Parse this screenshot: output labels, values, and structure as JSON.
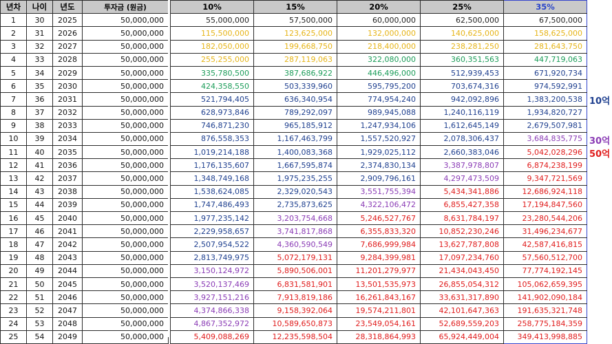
{
  "colors": {
    "default": "#222222",
    "yellow": "#e6b417",
    "green": "#1a9c58",
    "blue": "#1e3f8f",
    "purple": "#8a3bb5",
    "red": "#e01b1b"
  },
  "left_table": {
    "headers": [
      "년차",
      "나이",
      "년도",
      "투자금 (원금)"
    ],
    "rows": [
      [
        "1",
        "30",
        "2025",
        "50,000,000"
      ],
      [
        "2",
        "31",
        "2026",
        "50,000,000"
      ],
      [
        "3",
        "32",
        "2027",
        "50,000,000"
      ],
      [
        "4",
        "33",
        "2028",
        "50,000,000"
      ],
      [
        "5",
        "34",
        "2029",
        "50,000,000"
      ],
      [
        "6",
        "35",
        "2030",
        "50,000,000"
      ],
      [
        "7",
        "36",
        "2031",
        "50,000,000"
      ],
      [
        "8",
        "37",
        "2032",
        "50,000,000"
      ],
      [
        "9",
        "38",
        "2033",
        "50,000,000"
      ],
      [
        "10",
        "39",
        "2034",
        "50,000,000"
      ],
      [
        "11",
        "40",
        "2035",
        "50,000,000"
      ],
      [
        "12",
        "41",
        "2036",
        "50,000,000"
      ],
      [
        "13",
        "42",
        "2037",
        "50,000,000"
      ],
      [
        "14",
        "43",
        "2038",
        "50,000,000"
      ],
      [
        "15",
        "44",
        "2039",
        "50,000,000"
      ],
      [
        "16",
        "45",
        "2040",
        "50,000,000"
      ],
      [
        "17",
        "46",
        "2041",
        "50,000,000"
      ],
      [
        "18",
        "47",
        "2042",
        "50,000,000"
      ],
      [
        "19",
        "48",
        "2043",
        "50,000,000"
      ],
      [
        "20",
        "49",
        "2044",
        "50,000,000"
      ],
      [
        "21",
        "50",
        "2045",
        "50,000,000"
      ],
      [
        "22",
        "51",
        "2046",
        "50,000,000"
      ],
      [
        "23",
        "52",
        "2047",
        "50,000,000"
      ],
      [
        "24",
        "53",
        "2048",
        "50,000,000"
      ],
      [
        "25",
        "54",
        "2049",
        "50,000,000"
      ]
    ]
  },
  "right_table": {
    "headers": [
      "10%",
      "15%",
      "20%",
      "25%",
      "35%"
    ],
    "highlighted_column": 4,
    "rows": [
      [
        [
          "55,000,000",
          "default"
        ],
        [
          "57,500,000",
          "default"
        ],
        [
          "60,000,000",
          "default"
        ],
        [
          "62,500,000",
          "default"
        ],
        [
          "67,500,000",
          "default"
        ]
      ],
      [
        [
          "115,500,000",
          "yellow"
        ],
        [
          "123,625,000",
          "yellow"
        ],
        [
          "132,000,000",
          "yellow"
        ],
        [
          "140,625,000",
          "yellow"
        ],
        [
          "158,625,000",
          "yellow"
        ]
      ],
      [
        [
          "182,050,000",
          "yellow"
        ],
        [
          "199,668,750",
          "yellow"
        ],
        [
          "218,400,000",
          "yellow"
        ],
        [
          "238,281,250",
          "yellow"
        ],
        [
          "281,643,750",
          "yellow"
        ]
      ],
      [
        [
          "255,255,000",
          "yellow"
        ],
        [
          "287,119,063",
          "yellow"
        ],
        [
          "322,080,000",
          "green"
        ],
        [
          "360,351,563",
          "green"
        ],
        [
          "447,719,063",
          "green"
        ]
      ],
      [
        [
          "335,780,500",
          "green"
        ],
        [
          "387,686,922",
          "green"
        ],
        [
          "446,496,000",
          "green"
        ],
        [
          "512,939,453",
          "blue"
        ],
        [
          "671,920,734",
          "blue"
        ]
      ],
      [
        [
          "424,358,550",
          "green"
        ],
        [
          "503,339,960",
          "blue"
        ],
        [
          "595,795,200",
          "blue"
        ],
        [
          "703,674,316",
          "blue"
        ],
        [
          "974,592,991",
          "blue"
        ]
      ],
      [
        [
          "521,794,405",
          "blue"
        ],
        [
          "636,340,954",
          "blue"
        ],
        [
          "774,954,240",
          "blue"
        ],
        [
          "942,092,896",
          "blue"
        ],
        [
          "1,383,200,538",
          "blue"
        ]
      ],
      [
        [
          "628,973,846",
          "blue"
        ],
        [
          "789,292,097",
          "blue"
        ],
        [
          "989,945,088",
          "blue"
        ],
        [
          "1,240,116,119",
          "blue"
        ],
        [
          "1,934,820,727",
          "blue"
        ]
      ],
      [
        [
          "746,871,230",
          "blue"
        ],
        [
          "965,185,912",
          "blue"
        ],
        [
          "1,247,934,106",
          "blue"
        ],
        [
          "1,612,645,149",
          "blue"
        ],
        [
          "2,679,507,981",
          "blue"
        ]
      ],
      [
        [
          "876,558,353",
          "blue"
        ],
        [
          "1,167,463,799",
          "blue"
        ],
        [
          "1,557,520,927",
          "blue"
        ],
        [
          "2,078,306,437",
          "blue"
        ],
        [
          "3,684,835,775",
          "purple"
        ]
      ],
      [
        [
          "1,019,214,188",
          "blue"
        ],
        [
          "1,400,083,368",
          "blue"
        ],
        [
          "1,929,025,112",
          "blue"
        ],
        [
          "2,660,383,046",
          "blue"
        ],
        [
          "5,042,028,296",
          "red"
        ]
      ],
      [
        [
          "1,176,135,607",
          "blue"
        ],
        [
          "1,667,595,874",
          "blue"
        ],
        [
          "2,374,830,134",
          "blue"
        ],
        [
          "3,387,978,807",
          "purple"
        ],
        [
          "6,874,238,199",
          "red"
        ]
      ],
      [
        [
          "1,348,749,168",
          "blue"
        ],
        [
          "1,975,235,255",
          "blue"
        ],
        [
          "2,909,796,161",
          "blue"
        ],
        [
          "4,297,473,509",
          "purple"
        ],
        [
          "9,347,721,569",
          "red"
        ]
      ],
      [
        [
          "1,538,624,085",
          "blue"
        ],
        [
          "2,329,020,543",
          "blue"
        ],
        [
          "3,551,755,394",
          "purple"
        ],
        [
          "5,434,341,886",
          "red"
        ],
        [
          "12,686,924,118",
          "red"
        ]
      ],
      [
        [
          "1,747,486,493",
          "blue"
        ],
        [
          "2,735,873,625",
          "blue"
        ],
        [
          "4,322,106,472",
          "purple"
        ],
        [
          "6,855,427,358",
          "red"
        ],
        [
          "17,194,847,560",
          "red"
        ]
      ],
      [
        [
          "1,977,235,142",
          "blue"
        ],
        [
          "3,203,754,668",
          "purple"
        ],
        [
          "5,246,527,767",
          "red"
        ],
        [
          "8,631,784,197",
          "red"
        ],
        [
          "23,280,544,206",
          "red"
        ]
      ],
      [
        [
          "2,229,958,657",
          "blue"
        ],
        [
          "3,741,817,868",
          "purple"
        ],
        [
          "6,355,833,320",
          "red"
        ],
        [
          "10,852,230,246",
          "red"
        ],
        [
          "31,496,234,677",
          "red"
        ]
      ],
      [
        [
          "2,507,954,522",
          "blue"
        ],
        [
          "4,360,590,549",
          "purple"
        ],
        [
          "7,686,999,984",
          "red"
        ],
        [
          "13,627,787,808",
          "red"
        ],
        [
          "42,587,416,815",
          "red"
        ]
      ],
      [
        [
          "2,813,749,975",
          "blue"
        ],
        [
          "5,072,179,131",
          "red"
        ],
        [
          "9,284,399,981",
          "red"
        ],
        [
          "17,097,234,760",
          "red"
        ],
        [
          "57,560,512,700",
          "red"
        ]
      ],
      [
        [
          "3,150,124,972",
          "purple"
        ],
        [
          "5,890,506,001",
          "red"
        ],
        [
          "11,201,279,977",
          "red"
        ],
        [
          "21,434,043,450",
          "red"
        ],
        [
          "77,774,192,145",
          "red"
        ]
      ],
      [
        [
          "3,520,137,469",
          "purple"
        ],
        [
          "6,831,581,901",
          "red"
        ],
        [
          "13,501,535,973",
          "red"
        ],
        [
          "26,855,054,312",
          "red"
        ],
        [
          "105,062,659,395",
          "red"
        ]
      ],
      [
        [
          "3,927,151,216",
          "purple"
        ],
        [
          "7,913,819,186",
          "red"
        ],
        [
          "16,261,843,167",
          "red"
        ],
        [
          "33,631,317,890",
          "red"
        ],
        [
          "141,902,090,184",
          "red"
        ]
      ],
      [
        [
          "4,374,866,338",
          "purple"
        ],
        [
          "9,158,392,064",
          "red"
        ],
        [
          "19,574,211,801",
          "red"
        ],
        [
          "42,101,647,363",
          "red"
        ],
        [
          "191,635,321,748",
          "red"
        ]
      ],
      [
        [
          "4,867,352,972",
          "purple"
        ],
        [
          "10,589,650,873",
          "red"
        ],
        [
          "23,549,054,161",
          "red"
        ],
        [
          "52,689,559,203",
          "red"
        ],
        [
          "258,775,184,359",
          "red"
        ]
      ],
      [
        [
          "5,409,088,269",
          "red"
        ],
        [
          "12,235,598,504",
          "red"
        ],
        [
          "28,318,864,993",
          "red"
        ],
        [
          "65,924,449,004",
          "red"
        ],
        [
          "349,413,998,885",
          "red"
        ]
      ]
    ]
  },
  "markers": [
    {
      "label": "10억",
      "color": "blue",
      "row": 7
    },
    {
      "label": "30억",
      "color": "purple",
      "row": 10
    },
    {
      "label": "50억",
      "color": "red",
      "row": 11
    }
  ]
}
